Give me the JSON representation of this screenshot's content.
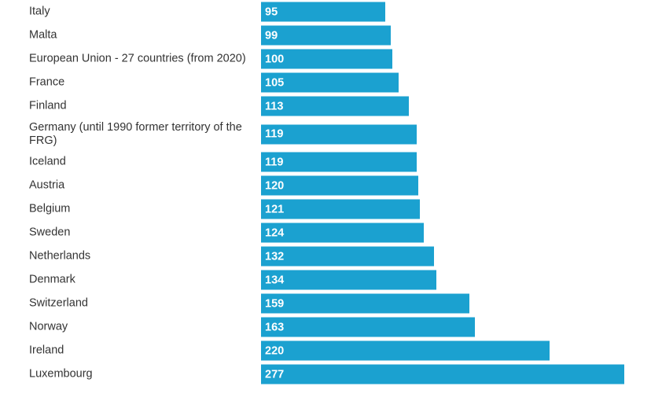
{
  "chart_data": {
    "type": "bar",
    "orientation": "horizontal",
    "title": "",
    "xlabel": "",
    "ylabel": "",
    "color": "#1ba1d0",
    "xlim": [
      0,
      277
    ],
    "categories": [
      "Italy",
      "Malta",
      "European Union - 27 countries (from 2020)",
      "France",
      "Finland",
      "Germany (until 1990 former territory of the FRG)",
      "Iceland",
      "Austria",
      "Belgium",
      "Sweden",
      "Netherlands",
      "Denmark",
      "Switzerland",
      "Norway",
      "Ireland",
      "Luxembourg"
    ],
    "values": [
      95,
      99,
      100,
      105,
      113,
      119,
      119,
      120,
      121,
      124,
      132,
      134,
      159,
      163,
      220,
      277
    ]
  }
}
